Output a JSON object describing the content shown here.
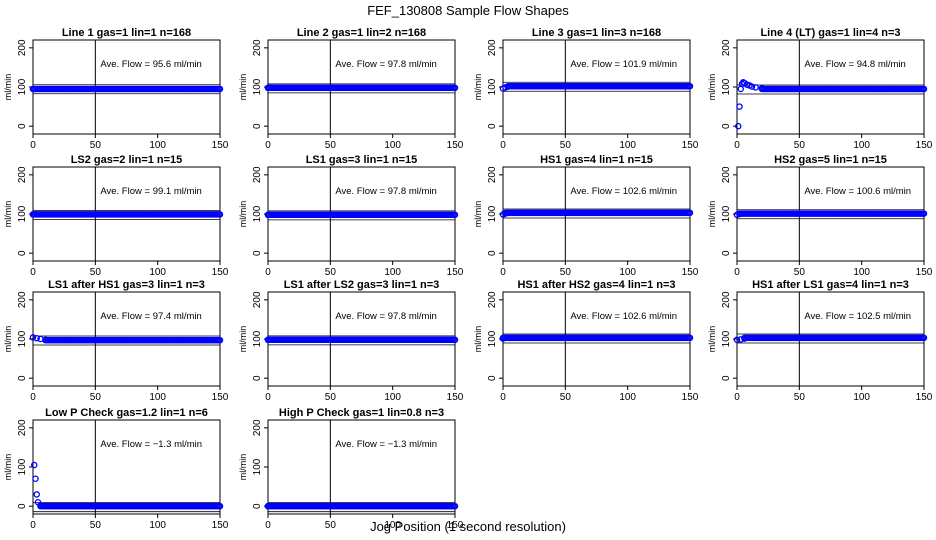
{
  "figure": {
    "title": "FEF_130808  Sample Flow Shapes",
    "xlabel": "Jog Position (1 second resolution)"
  },
  "colors": {
    "points": "#0000ff",
    "axes": "#000000"
  },
  "chart_data": [
    {
      "type": "scatter",
      "title": "Line 1 gas=1 lin=1 n=168",
      "ylabel": "ml/min",
      "annotation": "Ave. Flow = 95.6  ml/min",
      "xlim": [
        0,
        150
      ],
      "ylim": [
        -20,
        220
      ],
      "xticks": [
        0,
        50,
        100,
        150
      ],
      "yticks": [
        0,
        100,
        200
      ],
      "vline_x": 50,
      "hlines": [
        95.6
      ],
      "grid": false,
      "series": [
        {
          "points": [
            [
              0,
              95
            ],
            [
              150,
              95
            ]
          ],
          "style": "flat",
          "value": 95
        }
      ]
    },
    {
      "type": "scatter",
      "title": "Line 2 gas=1 lin=2 n=168",
      "ylabel": "ml/min",
      "annotation": "Ave. Flow = 97.8  ml/min",
      "xlim": [
        0,
        150
      ],
      "ylim": [
        -20,
        220
      ],
      "xticks": [
        0,
        50,
        100,
        150
      ],
      "yticks": [
        0,
        100,
        200
      ],
      "vline_x": 50,
      "hlines": [
        97.8
      ],
      "grid": false,
      "series": [
        {
          "points": [
            [
              0,
              98
            ],
            [
              150,
              98
            ]
          ],
          "style": "flat",
          "value": 98
        }
      ]
    },
    {
      "type": "scatter",
      "title": "Line 3 gas=1 lin=3 n=168",
      "ylabel": "ml/min",
      "annotation": "Ave. Flow = 101.9  ml/min",
      "xlim": [
        0,
        150
      ],
      "ylim": [
        -20,
        220
      ],
      "xticks": [
        0,
        50,
        100,
        150
      ],
      "yticks": [
        0,
        100,
        200
      ],
      "vline_x": 50,
      "hlines": [
        101.9
      ],
      "grid": false,
      "series": [
        {
          "points": [
            [
              0,
              96
            ],
            [
              2,
              99
            ],
            [
              4,
              101
            ],
            [
              150,
              102
            ]
          ],
          "style": "flat",
          "value": 102
        }
      ]
    },
    {
      "type": "scatter",
      "title": "Line 4 (LT) gas=1 lin=4 n=3",
      "ylabel": "ml/min",
      "annotation": "Ave. Flow = 94.8  ml/min",
      "xlim": [
        0,
        150
      ],
      "ylim": [
        -20,
        220
      ],
      "xticks": [
        0,
        50,
        100,
        150
      ],
      "yticks": [
        0,
        100,
        200
      ],
      "vline_x": 50,
      "hlines": [
        94.8
      ],
      "grid": false,
      "series": [
        {
          "points": [
            [
              1,
              0
            ],
            [
              2,
              50
            ],
            [
              3,
              95
            ],
            [
              4,
              108
            ],
            [
              5,
              112
            ],
            [
              6,
              110
            ],
            [
              8,
              106
            ],
            [
              10,
              104
            ],
            [
              12,
              101
            ],
            [
              15,
              99
            ],
            [
              20,
              97
            ],
            [
              150,
              95
            ]
          ],
          "style": "flat",
          "value": 95
        }
      ]
    },
    {
      "type": "scatter",
      "title": "LS2 gas=2 lin=1 n=15",
      "ylabel": "ml/min",
      "annotation": "Ave. Flow = 99.1  ml/min",
      "xlim": [
        0,
        150
      ],
      "ylim": [
        -20,
        220
      ],
      "xticks": [
        0,
        50,
        100,
        150
      ],
      "yticks": [
        0,
        100,
        200
      ],
      "vline_x": 50,
      "hlines": [
        99.1
      ],
      "grid": false,
      "series": [
        {
          "points": [
            [
              0,
              99
            ],
            [
              150,
              99
            ]
          ],
          "style": "flat",
          "value": 99
        }
      ]
    },
    {
      "type": "scatter",
      "title": "LS1 gas=3 lin=1 n=15",
      "ylabel": "ml/min",
      "annotation": "Ave. Flow = 97.8  ml/min",
      "xlim": [
        0,
        150
      ],
      "ylim": [
        -20,
        220
      ],
      "xticks": [
        0,
        50,
        100,
        150
      ],
      "yticks": [
        0,
        100,
        200
      ],
      "vline_x": 50,
      "hlines": [
        97.8
      ],
      "grid": false,
      "series": [
        {
          "points": [
            [
              0,
              98
            ],
            [
              150,
              98
            ]
          ],
          "style": "flat",
          "value": 98
        }
      ]
    },
    {
      "type": "scatter",
      "title": "HS1 gas=4 lin=1 n=15",
      "ylabel": "ml/min",
      "annotation": "Ave. Flow = 102.6  ml/min",
      "xlim": [
        0,
        150
      ],
      "ylim": [
        -20,
        220
      ],
      "xticks": [
        0,
        50,
        100,
        150
      ],
      "yticks": [
        0,
        100,
        200
      ],
      "vline_x": 50,
      "hlines": [
        102.6
      ],
      "grid": false,
      "series": [
        {
          "points": [
            [
              0,
              99
            ],
            [
              2,
              101
            ],
            [
              150,
              103
            ]
          ],
          "style": "flat",
          "value": 103
        }
      ]
    },
    {
      "type": "scatter",
      "title": "HS2 gas=5 lin=1 n=15",
      "ylabel": "ml/min",
      "annotation": "Ave. Flow = 100.6  ml/min",
      "xlim": [
        0,
        150
      ],
      "ylim": [
        -20,
        220
      ],
      "xticks": [
        0,
        50,
        100,
        150
      ],
      "yticks": [
        0,
        100,
        200
      ],
      "vline_x": 50,
      "hlines": [
        100.6
      ],
      "grid": false,
      "series": [
        {
          "points": [
            [
              0,
              98
            ],
            [
              2,
              100
            ],
            [
              150,
              101
            ]
          ],
          "style": "flat",
          "value": 101
        }
      ]
    },
    {
      "type": "scatter",
      "title": "LS1 after HS1 gas=3 lin=1 n=3",
      "ylabel": "ml/min",
      "annotation": "Ave. Flow = 97.4  ml/min",
      "xlim": [
        0,
        150
      ],
      "ylim": [
        -20,
        220
      ],
      "xticks": [
        0,
        50,
        100,
        150
      ],
      "yticks": [
        0,
        100,
        200
      ],
      "vline_x": 50,
      "hlines": [
        97.4
      ],
      "grid": false,
      "series": [
        {
          "points": [
            [
              0,
              104
            ],
            [
              3,
              102
            ],
            [
              6,
              100
            ],
            [
              10,
              98
            ],
            [
              150,
              97
            ]
          ],
          "style": "flat",
          "value": 97
        }
      ]
    },
    {
      "type": "scatter",
      "title": "LS1 after LS2 gas=3 lin=1 n=3",
      "ylabel": "ml/min",
      "annotation": "Ave. Flow = 97.8  ml/min",
      "xlim": [
        0,
        150
      ],
      "ylim": [
        -20,
        220
      ],
      "xticks": [
        0,
        50,
        100,
        150
      ],
      "yticks": [
        0,
        100,
        200
      ],
      "vline_x": 50,
      "hlines": [
        97.8
      ],
      "grid": false,
      "series": [
        {
          "points": [
            [
              0,
              98
            ],
            [
              150,
              98
            ]
          ],
          "style": "flat",
          "value": 98
        }
      ]
    },
    {
      "type": "scatter",
      "title": "HS1 after HS2 gas=4 lin=1 n=3",
      "ylabel": "ml/min",
      "annotation": "Ave. Flow = 102.6  ml/min",
      "xlim": [
        0,
        150
      ],
      "ylim": [
        -20,
        220
      ],
      "xticks": [
        0,
        50,
        100,
        150
      ],
      "yticks": [
        0,
        100,
        200
      ],
      "vline_x": 50,
      "hlines": [
        102.6
      ],
      "grid": false,
      "series": [
        {
          "points": [
            [
              0,
              101
            ],
            [
              150,
              103
            ]
          ],
          "style": "flat",
          "value": 103
        }
      ]
    },
    {
      "type": "scatter",
      "title": "HS1 after LS1 gas=4 lin=1 n=3",
      "ylabel": "ml/min",
      "annotation": "Ave. Flow = 102.5  ml/min",
      "xlim": [
        0,
        150
      ],
      "ylim": [
        -20,
        220
      ],
      "xticks": [
        0,
        50,
        100,
        150
      ],
      "yticks": [
        0,
        100,
        200
      ],
      "vline_x": 50,
      "hlines": [
        102.5
      ],
      "grid": false,
      "series": [
        {
          "points": [
            [
              0,
              98
            ],
            [
              3,
              99
            ],
            [
              6,
              101
            ],
            [
              150,
              103
            ]
          ],
          "style": "flat",
          "value": 103
        }
      ]
    },
    {
      "type": "scatter",
      "title": "Low P Check gas=1.2 lin=1 n=6",
      "ylabel": "ml/min",
      "annotation": "Ave. Flow = −1.3  ml/min",
      "xlim": [
        0,
        150
      ],
      "ylim": [
        -20,
        220
      ],
      "xticks": [
        0,
        50,
        100,
        150
      ],
      "yticks": [
        0,
        100,
        200
      ],
      "vline_x": 50,
      "hlines": [
        -1.3
      ],
      "grid": false,
      "series": [
        {
          "points": [
            [
              1,
              105
            ],
            [
              2,
              70
            ],
            [
              3,
              30
            ],
            [
              4,
              10
            ],
            [
              6,
              2
            ],
            [
              150,
              0
            ]
          ],
          "style": "flat",
          "value": 0
        }
      ]
    },
    {
      "type": "scatter",
      "title": "High P Check gas=1 lin=0.8 n=3",
      "ylabel": "ml/min",
      "annotation": "Ave. Flow = −1.3  ml/min",
      "xlim": [
        0,
        150
      ],
      "ylim": [
        -20,
        220
      ],
      "xticks": [
        0,
        50,
        100,
        150
      ],
      "yticks": [
        0,
        100,
        200
      ],
      "vline_x": 50,
      "hlines": [
        -1.3
      ],
      "grid": false,
      "series": [
        {
          "points": [
            [
              0,
              0
            ],
            [
              150,
              0
            ]
          ],
          "style": "flat",
          "value": 0
        }
      ]
    }
  ]
}
